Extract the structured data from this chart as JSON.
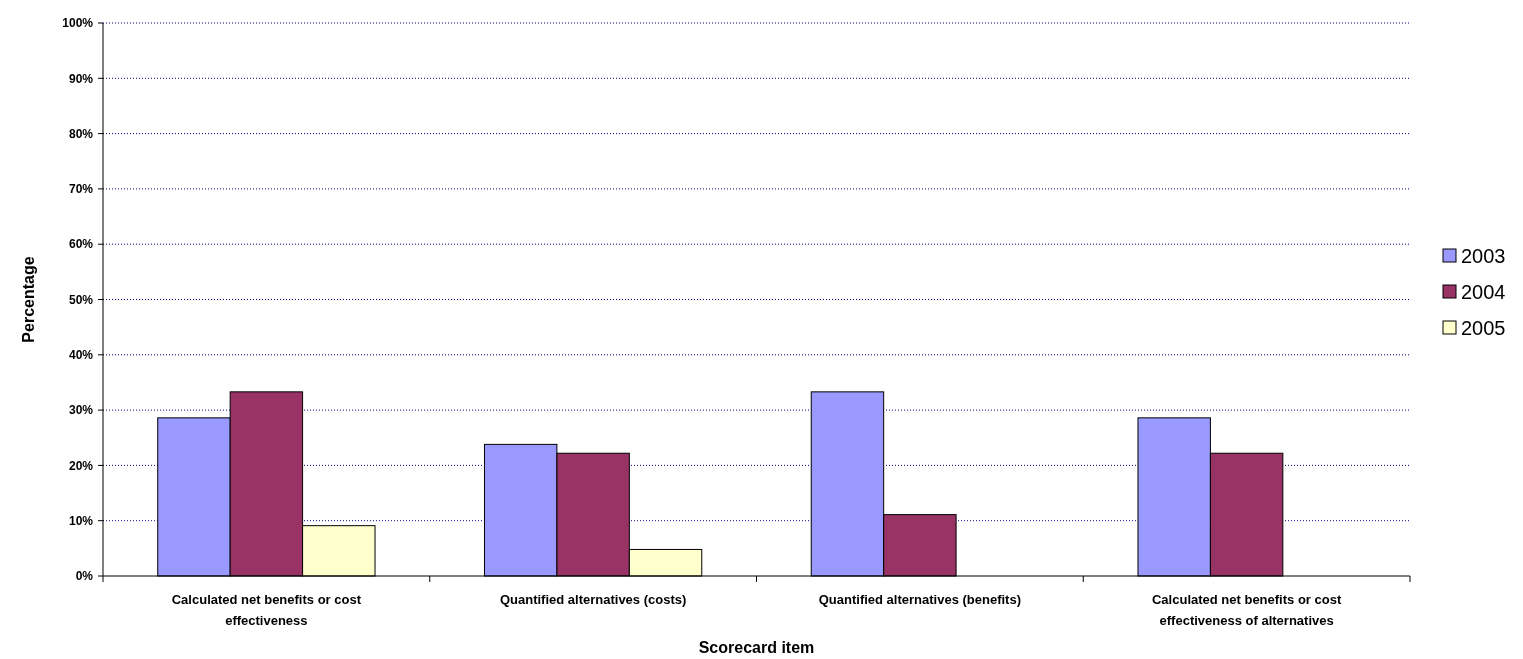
{
  "chart_data": {
    "type": "bar",
    "xlabel": "Scorecard item",
    "ylabel": "Percentage",
    "categories": [
      "Calculated net benefits or cost effectiveness",
      "Quantified alternatives (costs)",
      "Quantified alternatives (benefits)",
      "Calculated net benefits or cost effectiveness of alternatives"
    ],
    "series": [
      {
        "name": "2003",
        "color": "#9999ff",
        "values": [
          28.6,
          23.8,
          33.3,
          28.6
        ]
      },
      {
        "name": "2004",
        "color": "#993366",
        "values": [
          33.3,
          22.2,
          11.1,
          22.2
        ]
      },
      {
        "name": "2005",
        "color": "#ffffcc",
        "values": [
          9.1,
          4.8,
          null,
          null
        ]
      }
    ],
    "ylim": [
      0,
      100
    ],
    "yticks": [
      {
        "value": 0,
        "label": "0%"
      },
      {
        "value": 10,
        "label": "10%"
      },
      {
        "value": 20,
        "label": "20%"
      },
      {
        "value": 30,
        "label": "30%"
      },
      {
        "value": 40,
        "label": "40%"
      },
      {
        "value": 50,
        "label": "50%"
      },
      {
        "value": 60,
        "label": "60%"
      },
      {
        "value": 70,
        "label": "70%"
      },
      {
        "value": 80,
        "label": "80%"
      },
      {
        "value": 90,
        "label": "90%"
      },
      {
        "value": 100,
        "label": "100%"
      }
    ],
    "grid": "y",
    "legend": "right"
  }
}
